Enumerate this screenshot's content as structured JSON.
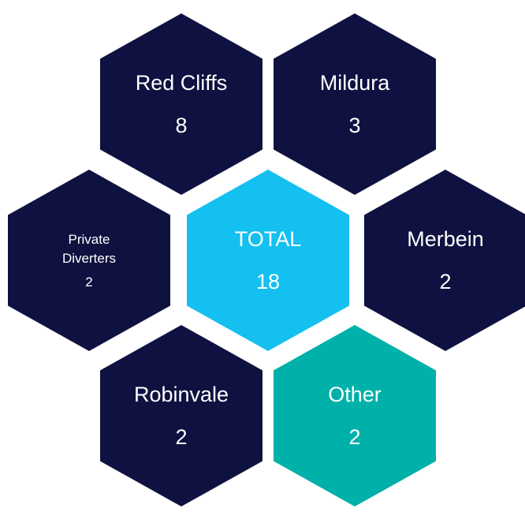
{
  "nodes": [
    {
      "label": "Red Cliffs",
      "value": "8",
      "color": "#0f1140"
    },
    {
      "label": "Mildura",
      "value": "3",
      "color": "#0f1140"
    },
    {
      "label": "Private Diverters",
      "value": "2",
      "color": "#0f1140"
    },
    {
      "label": "TOTAL",
      "value": "18",
      "color": "#14c0f0"
    },
    {
      "label": "Merbein",
      "value": "2",
      "color": "#0f1140"
    },
    {
      "label": "Robinvale",
      "value": "2",
      "color": "#0f1140"
    },
    {
      "label": "Other",
      "value": "2",
      "color": "#00b1a9"
    }
  ]
}
